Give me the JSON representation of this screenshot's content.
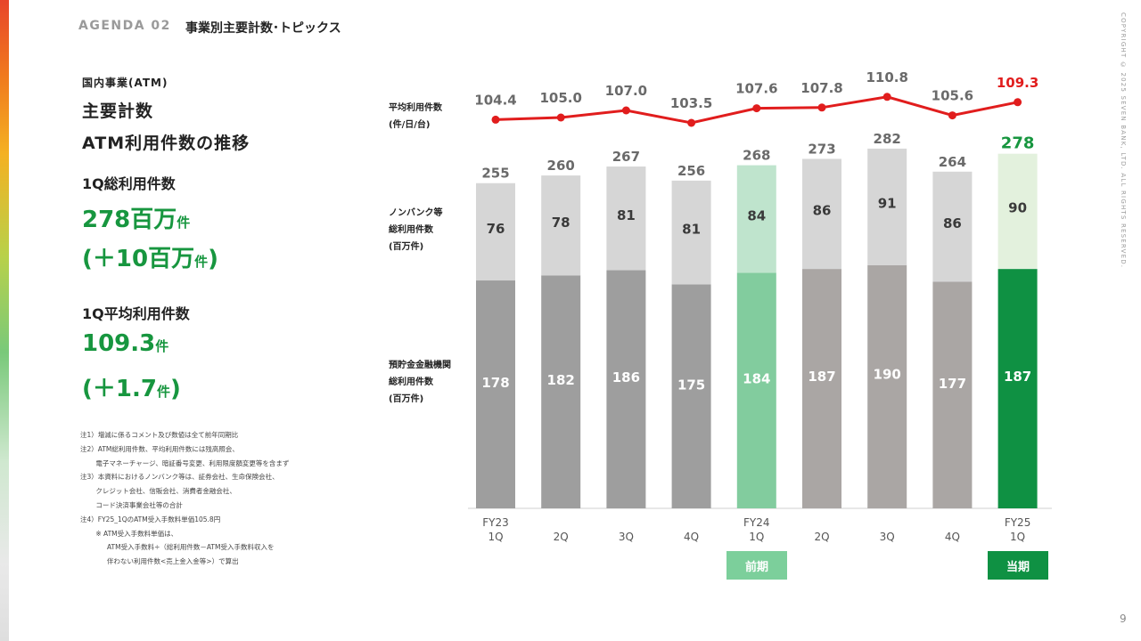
{
  "header": {
    "agenda": "AGENDA 02",
    "title": "事業別主要計数･トピックス",
    "copyright": "COPYRIGHT © 2025 SEVEN BANK, LTD. ALL RIGHTS RESERVED.",
    "page_number": "9"
  },
  "left": {
    "section_label": "国内事業(ATM)",
    "heading1": "主要計数",
    "heading2": "ATM利用件数の推移",
    "total_label": "1Q総利用件数",
    "total_value": "278百万",
    "total_unit": "件",
    "total_change_open": "(＋10百万",
    "total_change_unit": "件",
    "total_change_close": ")",
    "avg_label": "1Q平均利用件数",
    "avg_value": "109.3",
    "avg_unit": "件",
    "avg_change_open": "(＋1.7",
    "avg_change_unit": "件",
    "avg_change_close": ")",
    "notes": [
      "注1）増減に係るコメント及び数値は全て前年同期比",
      "注2）ATM総利用件数、平均利用件数には残高照会、",
      "　　 電子マネーチャージ、暗証番号変更、利用限度額変更等を含まず",
      "注3）本資料におけるノンバンク等は、証券会社、生命保険会社、",
      "　　 クレジット会社、信販会社、消費者金融会社、",
      "　　 コード決済事業会社等の合計",
      "注4）FY25_1QのATM受入手数料単価105.8円",
      "　　 ※ ATM受入手数料単価は、",
      "　　　　ATM受入手数料÷（総利用件数－ATM受入手数料収入を",
      "　　　　伴わない利用件数<売上金入金等>）で算出"
    ]
  },
  "chart_labels": {
    "avg_line": [
      "平均利用件数",
      "(件/日/台)"
    ],
    "nonbank": [
      "ノンバンク等",
      "総利用件数",
      "(百万件)"
    ],
    "deposit": [
      "預貯金金融機関",
      "総利用件数",
      "(百万件)"
    ]
  },
  "tags": {
    "previous": "前期",
    "current": "当期"
  },
  "chart_data": {
    "type": "bar",
    "stacked": true,
    "categories": [
      [
        "FY23",
        "1Q"
      ],
      [
        "2Q"
      ],
      [
        "3Q"
      ],
      [
        "4Q"
      ],
      [
        "FY24",
        "1Q"
      ],
      [
        "2Q"
      ],
      [
        "3Q"
      ],
      [
        "4Q"
      ],
      [
        "FY25",
        "1Q"
      ]
    ],
    "series": [
      {
        "name": "預貯金金融機関 総利用件数 (百万件)",
        "values": [
          178,
          182,
          186,
          175,
          184,
          187,
          190,
          177,
          187
        ]
      },
      {
        "name": "ノンバンク等 総利用件数 (百万件)",
        "values": [
          76,
          78,
          81,
          81,
          84,
          86,
          91,
          86,
          90
        ]
      }
    ],
    "totals": [
      255,
      260,
      267,
      256,
      268,
      273,
      282,
      264,
      278
    ],
    "line": {
      "name": "平均利用件数 (件/日/台)",
      "values": [
        104.4,
        105.0,
        107.0,
        103.5,
        107.6,
        107.8,
        110.8,
        105.6,
        109.3
      ],
      "color": "#e11d1d"
    },
    "colors": {
      "deposit_past": "#9e9e9e",
      "deposit_fy24": "#aaa6a4",
      "nonbank": "#d6d6d6",
      "fy24_1q_deposit": "#82cc9e",
      "fy24_1q_nonbank": "#bfe4cd",
      "fy25_1q_deposit": "#0f9143",
      "fy25_1q_nonbank": "#e3f1dd",
      "highlight_text": "#17963f",
      "label_dark": "#3a3a3a",
      "label_grey": "#6a6a6a"
    }
  }
}
